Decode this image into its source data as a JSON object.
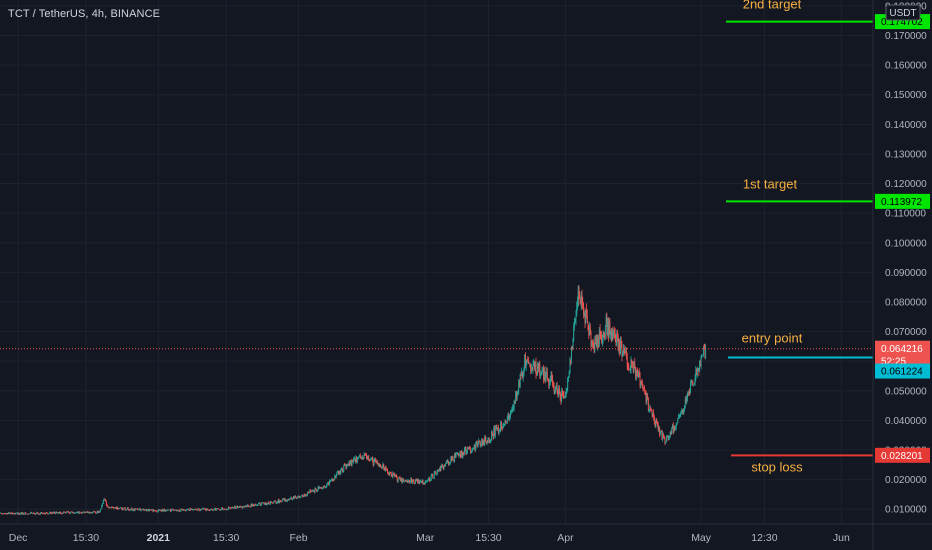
{
  "symbol_title": "TCT / TetherUS, 4h, BINANCE",
  "currency": "USDT",
  "countdown": "52:25",
  "colors": {
    "background": "#131722",
    "up": "#26a69a",
    "down": "#ef5350",
    "target": "#00e600",
    "entry": "#00bcd4",
    "stop": "#e53935",
    "annotation": "#f5b041"
  },
  "chart_data": {
    "type": "candlestick",
    "title": "TCT / TetherUS, 4h, BINANCE",
    "ylim": [
      0.005,
      0.182
    ],
    "y_ticks": [
      0.01,
      0.02,
      0.03,
      0.04,
      0.05,
      0.06,
      0.07,
      0.08,
      0.09,
      0.1,
      0.11,
      0.12,
      0.13,
      0.14,
      0.15,
      0.16,
      0.17,
      0.18
    ],
    "x_ticks": [
      {
        "label": "Dec",
        "day": 0,
        "bold": false
      },
      {
        "label": "15:30",
        "day": 15,
        "bold": false
      },
      {
        "label": "2021",
        "day": 31,
        "bold": true
      },
      {
        "label": "15:30",
        "day": 46,
        "bold": false
      },
      {
        "label": "Feb",
        "day": 62,
        "bold": false
      },
      {
        "label": "Mar",
        "day": 90,
        "bold": false
      },
      {
        "label": "15:30",
        "day": 104,
        "bold": false
      },
      {
        "label": "Apr",
        "day": 121,
        "bold": false
      },
      {
        "label": "May",
        "day": 151,
        "bold": false
      },
      {
        "label": "12:30",
        "day": 165,
        "bold": false
      },
      {
        "label": "Jun",
        "day": 182,
        "bold": false
      }
    ],
    "xlim_days": [
      -4,
      189
    ],
    "last_day": 152,
    "price_path": [
      [
        -4,
        0.0087
      ],
      [
        0,
        0.0085
      ],
      [
        10,
        0.0088
      ],
      [
        18,
        0.009
      ],
      [
        19,
        0.0135
      ],
      [
        20,
        0.0105
      ],
      [
        30,
        0.0095
      ],
      [
        45,
        0.01
      ],
      [
        55,
        0.012
      ],
      [
        62,
        0.014
      ],
      [
        68,
        0.018
      ],
      [
        72,
        0.024
      ],
      [
        76,
        0.028
      ],
      [
        80,
        0.025
      ],
      [
        84,
        0.02
      ],
      [
        90,
        0.019
      ],
      [
        96,
        0.027
      ],
      [
        104,
        0.034
      ],
      [
        109,
        0.042
      ],
      [
        112,
        0.06
      ],
      [
        116,
        0.056
      ],
      [
        121,
        0.047
      ],
      [
        124,
        0.085
      ],
      [
        127,
        0.065
      ],
      [
        130,
        0.072
      ],
      [
        134,
        0.062
      ],
      [
        137,
        0.055
      ],
      [
        140,
        0.042
      ],
      [
        143,
        0.033
      ],
      [
        146,
        0.04
      ],
      [
        149,
        0.052
      ],
      [
        152,
        0.0642
      ]
    ],
    "current_price": 0.064216,
    "current_price_label": "0.064216",
    "levels": [
      {
        "name": "2nd target",
        "label": "0.174702",
        "value": 0.174702,
        "color": "#00e600"
      },
      {
        "name": "1st target",
        "label": "0.113972",
        "value": 0.113972,
        "color": "#00e600"
      },
      {
        "name": "entry point",
        "label": "0.061224",
        "value": 0.061224,
        "color": "#00bcd4"
      },
      {
        "name": "stop loss",
        "label": "0.028201",
        "value": 0.028201,
        "color": "#e53935"
      }
    ]
  }
}
